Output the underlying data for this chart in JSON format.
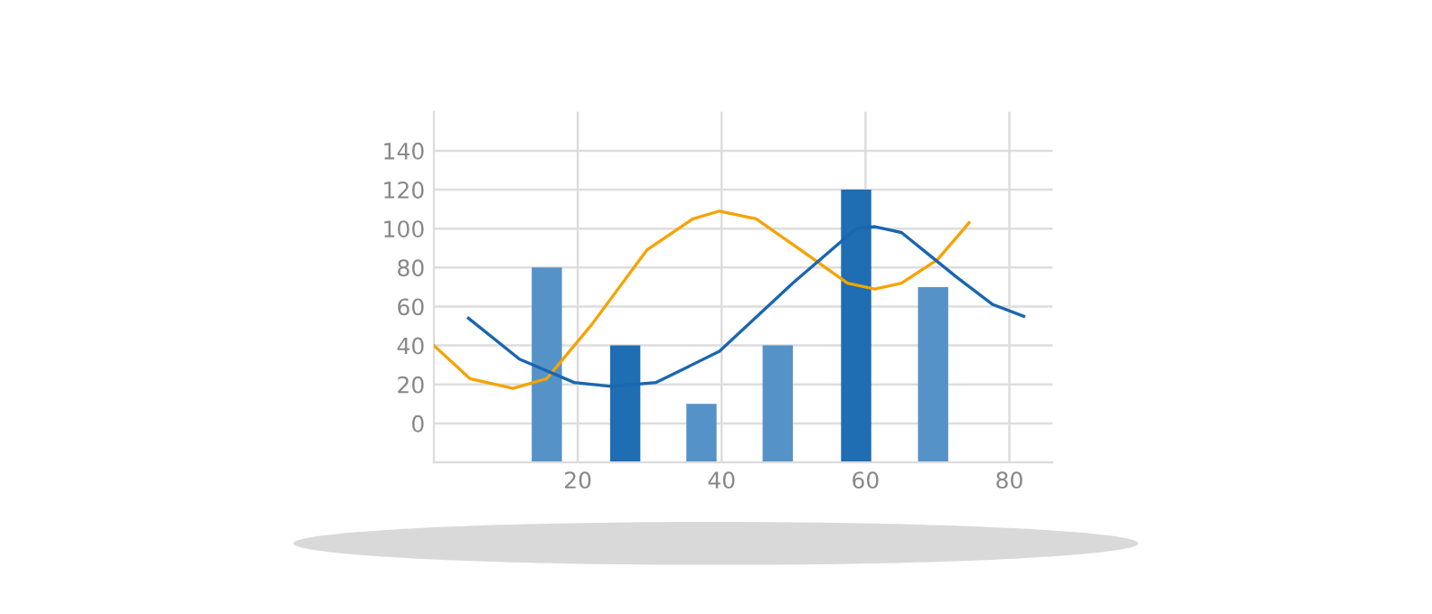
{
  "chart_data": {
    "type": "bar",
    "x": [
      15.7,
      26.6,
      37.2,
      47.8,
      58.7,
      69.4
    ],
    "series": [
      {
        "base": [
          -20,
          -20,
          -20,
          -20,
          -20,
          -20
        ],
        "values": [
          100,
          60,
          30,
          60,
          140,
          90
        ],
        "colors": [
          "#5592c8",
          "#1f6db3",
          "#5592c8",
          "#5592c8",
          "#1f6db3",
          "#5592c8"
        ]
      },
      {
        "type": "line",
        "color": "#f5a300",
        "x": [
          0,
          5,
          11,
          15.7,
          22,
          29.6,
          36,
          39.7,
          44.8,
          51,
          57.5,
          61.3,
          65,
          70,
          74.4
        ],
        "values": [
          40,
          23,
          18,
          23,
          51,
          89,
          105,
          109,
          105,
          89,
          72,
          69,
          72,
          84,
          103
        ]
      },
      {
        "type": "line",
        "color": "#1a66b0",
        "x": [
          4.8,
          11.9,
          19.5,
          24.6,
          30.9,
          39.7,
          49.9,
          58.7,
          61.3,
          65,
          72.7,
          77.7,
          82
        ],
        "values": [
          54,
          33,
          21,
          19,
          21,
          37,
          72,
          100,
          101,
          98,
          75,
          61,
          55
        ]
      }
    ],
    "xlim": [
      0,
      86
    ],
    "xticks": [
      20,
      40,
      60,
      80
    ],
    "ylim": [
      -20,
      160
    ],
    "yticks": [
      {
        "value": -20,
        "label": null
      },
      0,
      20,
      40,
      60,
      80,
      100,
      120,
      140
    ],
    "grid": true
  }
}
